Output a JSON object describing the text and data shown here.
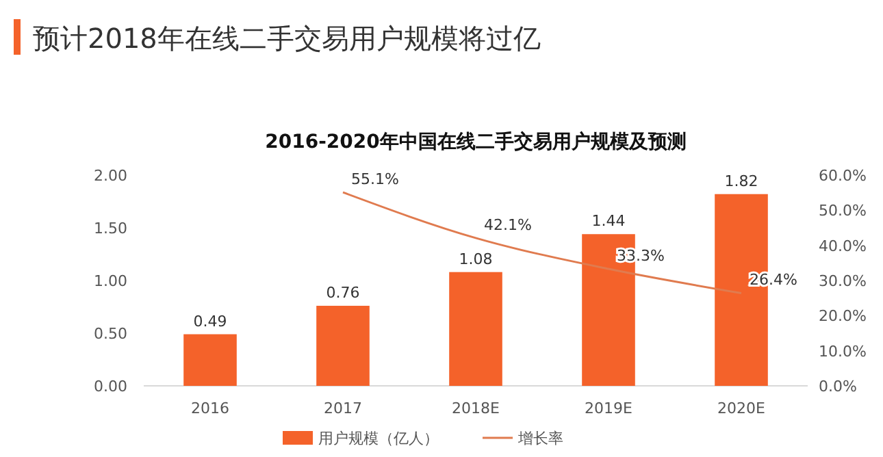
{
  "chart_data": {
    "type": "bar",
    "title": "预计2018年在线二手交易用户规模将过亿",
    "subtitle": "2016-2020年中国在线二手交易用户规模及预测",
    "categories": [
      "2016",
      "2017",
      "2018E",
      "2019E",
      "2020E"
    ],
    "series": [
      {
        "name": "用户规模（亿人）",
        "color": "#f4622a",
        "values": [
          0.49,
          0.76,
          1.08,
          1.44,
          1.82
        ]
      },
      {
        "name": "增长率",
        "type": "line",
        "axis": "y2",
        "color": "#e07b4f",
        "values": [
          null,
          55.1,
          42.1,
          33.3,
          26.4
        ],
        "value_labels": [
          null,
          "55.1%",
          "42.1%",
          "33.3%",
          "26.4%"
        ]
      }
    ],
    "ylim": [
      0,
      2
    ],
    "yticks": [
      {
        "value": 0,
        "label": "0.00"
      },
      {
        "value": 0.5,
        "label": "0.50"
      },
      {
        "value": 1,
        "label": "1.00"
      },
      {
        "value": 1.5,
        "label": "1.50"
      },
      {
        "value": 2,
        "label": "2.00"
      }
    ],
    "y2lim": [
      0,
      60
    ],
    "y2ticks": [
      {
        "value": 0,
        "label": "0.0%"
      },
      {
        "value": 10,
        "label": "10.0%"
      },
      {
        "value": 20,
        "label": "20.0%"
      },
      {
        "value": 30,
        "label": "30.0%"
      },
      {
        "value": 40,
        "label": "40.0%"
      },
      {
        "value": 50,
        "label": "50.0%"
      },
      {
        "value": 60,
        "label": "60.0%"
      }
    ],
    "data_labels": true,
    "legend": "bottom",
    "marker": "none",
    "line_style": "solid"
  }
}
